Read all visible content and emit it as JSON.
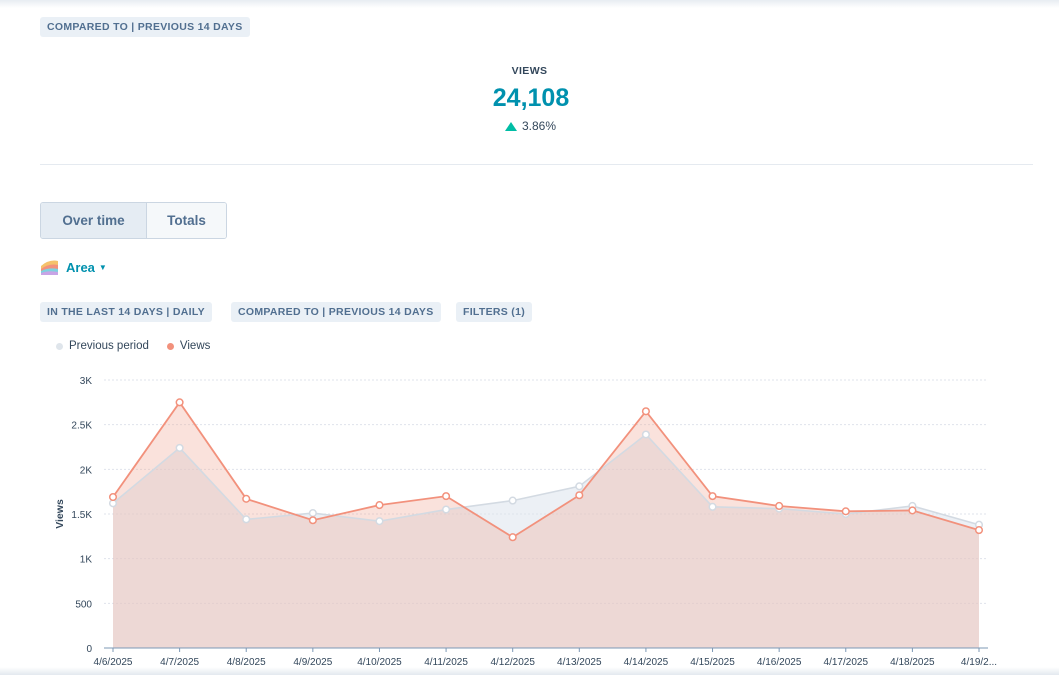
{
  "header": {
    "compare_tag": "COMPARED TO | PREVIOUS 14 DAYS"
  },
  "kpi": {
    "label": "VIEWS",
    "value": "24,108",
    "change": "3.86%",
    "change_direction": "up",
    "up_color": "#00bda5",
    "value_color": "#0091ae"
  },
  "toggle": {
    "over_time": "Over time",
    "totals": "Totals",
    "selected": "Over time"
  },
  "chart_type": {
    "label": "Area",
    "icon": "area-chart-icon"
  },
  "filters": {
    "range": "IN THE LAST 14 DAYS | DAILY",
    "compare": "COMPARED TO | PREVIOUS 14 DAYS",
    "filters": "FILTERS (1)"
  },
  "chart_data": {
    "type": "area",
    "title": "",
    "xlabel": "",
    "ylabel": "Views",
    "ylim": [
      0,
      3000
    ],
    "yticks": [
      0,
      500,
      1000,
      1500,
      2000,
      2500,
      3000
    ],
    "ytick_labels": [
      "0",
      "500",
      "1K",
      "1.5K",
      "2K",
      "2.5K",
      "3K"
    ],
    "categories": [
      "4/6/2025",
      "4/7/2025",
      "4/8/2025",
      "4/9/2025",
      "4/10/2025",
      "4/11/2025",
      "4/12/2025",
      "4/13/2025",
      "4/14/2025",
      "4/15/2025",
      "4/16/2025",
      "4/17/2025",
      "4/18/2025",
      "4/19/2..."
    ],
    "legend_position": "top-left",
    "series": [
      {
        "name": "Previous period",
        "color": "#dfe5eb",
        "values": [
          1620,
          2240,
          1440,
          1510,
          1420,
          1550,
          1650,
          1810,
          2390,
          1580,
          1560,
          1500,
          1590,
          1380
        ]
      },
      {
        "name": "Views",
        "color": "#f2917c",
        "values": [
          1690,
          2750,
          1670,
          1430,
          1600,
          1700,
          1240,
          1710,
          2650,
          1700,
          1590,
          1530,
          1540,
          1320
        ]
      }
    ]
  }
}
